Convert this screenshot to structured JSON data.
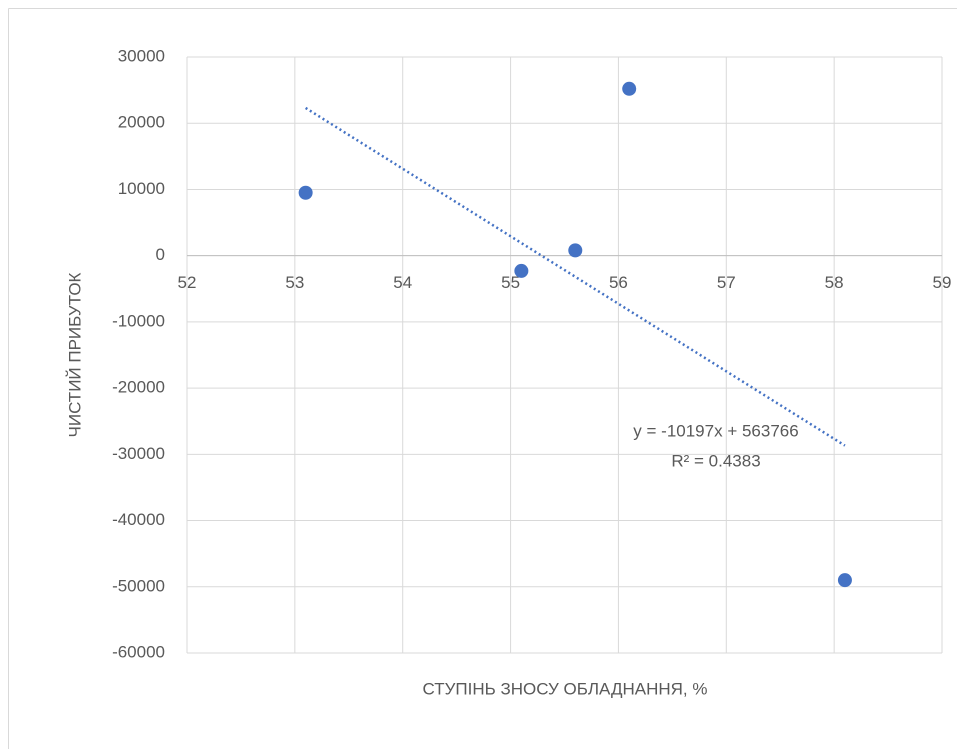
{
  "chart_data": {
    "type": "scatter",
    "x_label": "СТУПІНЬ ЗНОСУ ОБЛАДНАННЯ, %",
    "y_label": "ЧИСТИЙ ПРИБУТОК",
    "series": [
      {
        "name": "ЧИСТИЙ ПРИБУТОК",
        "color": "#4472c4",
        "x": [
          53.1,
          55.1,
          55.6,
          56.1,
          58.1
        ],
        "values": [
          9500,
          -2300,
          800,
          25200,
          -49000
        ]
      }
    ],
    "trendline": {
      "slope": -10197,
      "intercept": 563766,
      "x": [
        53.1,
        58.1
      ],
      "color": "#4472c4",
      "equation": "y = -10197x + 563766",
      "r2": "R² = 0.4383"
    },
    "xlim": [
      52,
      59
    ],
    "xticks": [
      52,
      53,
      54,
      55,
      56,
      57,
      58,
      59
    ],
    "ylim": [
      -60000,
      30000
    ],
    "yticks": [
      -60000,
      -50000,
      -40000,
      -30000,
      -20000,
      -10000,
      0,
      10000,
      20000,
      30000
    ],
    "grid": true
  }
}
